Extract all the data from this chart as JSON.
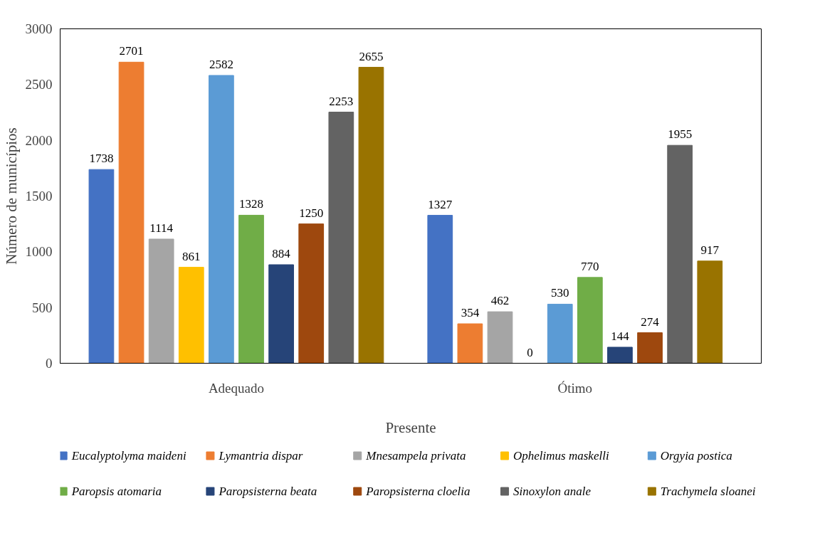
{
  "chart_data": {
    "type": "bar",
    "xlabel": "Presente",
    "ylabel": "Número de municípios",
    "categories": [
      "Adequado",
      "Ótimo"
    ],
    "series": [
      {
        "name": "Eucalyptolyma maideni",
        "color": "#4472c4",
        "values": [
          1738,
          1327
        ]
      },
      {
        "name": "Lymantria dispar",
        "color": "#ed7d31",
        "values": [
          2701,
          354
        ]
      },
      {
        "name": "Mnesampela privata",
        "color": "#a5a5a5",
        "values": [
          1114,
          462
        ]
      },
      {
        "name": "Ophelimus maskelli",
        "color": "#ffc000",
        "values": [
          861,
          0
        ]
      },
      {
        "name": "Orgyia postica",
        "color": "#5b9bd5",
        "values": [
          2582,
          530
        ]
      },
      {
        "name": "Paropsis atomaria",
        "color": "#70ad47",
        "values": [
          1328,
          770
        ]
      },
      {
        "name": "Paropsisterna beata",
        "color": "#264478",
        "values": [
          884,
          144
        ]
      },
      {
        "name": "Paropsisterna cloelia",
        "color": "#9e480e",
        "values": [
          1250,
          274
        ]
      },
      {
        "name": "Sinoxylon anale",
        "color": "#636363",
        "values": [
          2253,
          1955
        ]
      },
      {
        "name": "Trachymela sloanei",
        "color": "#997300",
        "values": [
          2655,
          917
        ]
      }
    ],
    "ylim": [
      0,
      3000
    ],
    "yticks": [
      0,
      500,
      1000,
      1500,
      2000,
      2500,
      3000
    ],
    "data_labels": true,
    "grid": false,
    "legend": "bottom"
  }
}
